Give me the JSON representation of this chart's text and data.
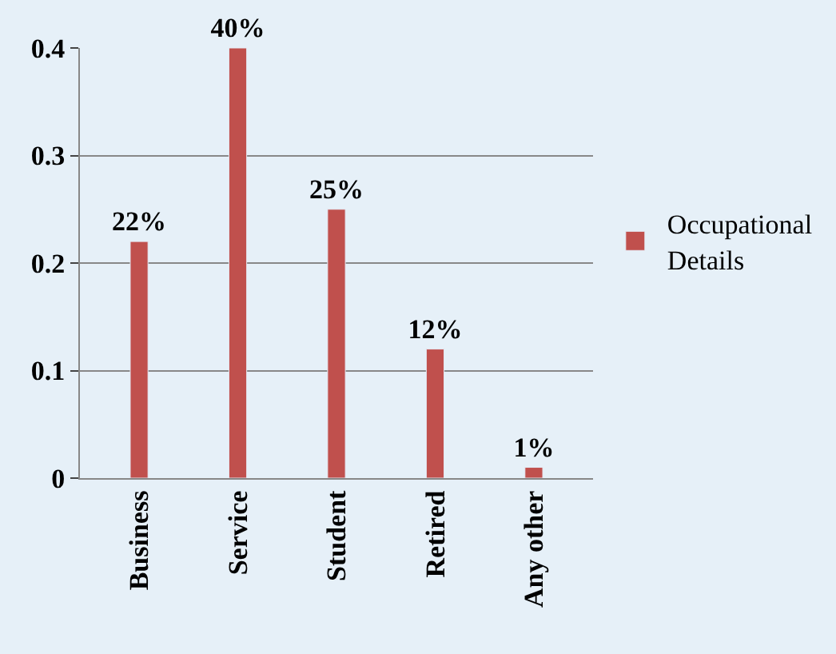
{
  "chart_data": {
    "type": "bar",
    "categories": [
      "Business",
      "Service",
      "Student",
      "Retired",
      "Any other"
    ],
    "series": [
      {
        "name": "Occupational Details",
        "color": "#c0504d",
        "values": [
          0.22,
          0.4,
          0.25,
          0.12,
          0.01
        ],
        "value_labels": [
          "22%",
          "40%",
          "25%",
          "12%",
          "1%"
        ]
      }
    ],
    "ylim": [
      0,
      0.4
    ],
    "yticks": [
      0,
      0.1,
      0.2,
      0.3,
      0.4
    ],
    "grid": "y",
    "legend": "right"
  }
}
